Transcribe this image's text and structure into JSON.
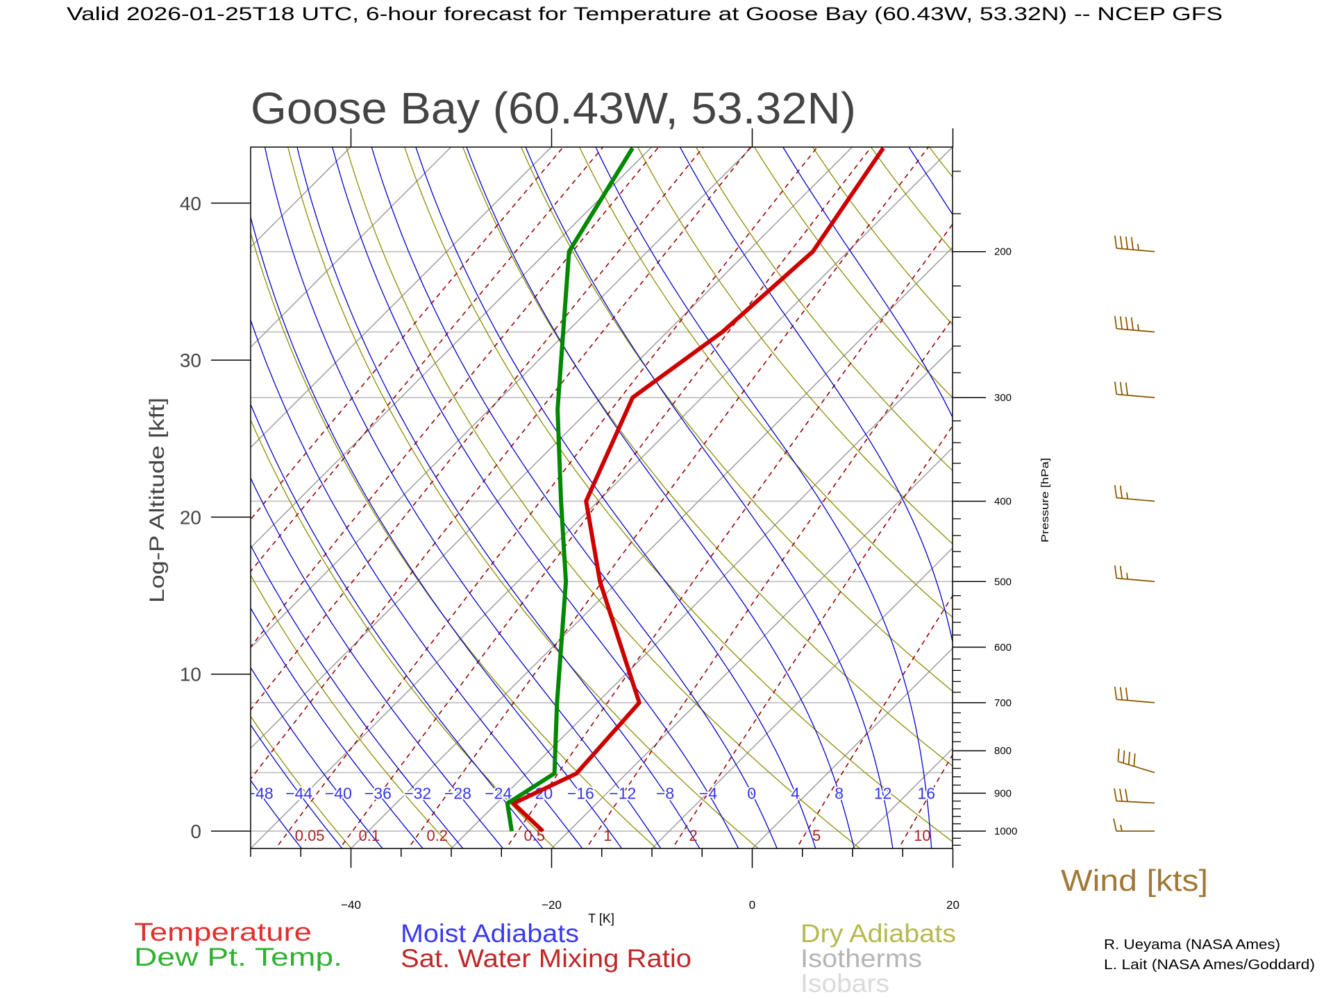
{
  "header": {
    "title": "Valid 2026-01-25T18 UTC, 6-hour forecast for Temperature at Goose Bay (60.43W, 53.32N) -- NCEP GFS"
  },
  "chart_data": {
    "type": "line",
    "kind": "skew-T log-P sounding",
    "title": "Goose Bay (60.43W, 53.32N)",
    "xlabel": "T [K]",
    "ylabel": "Log-P Altitude [kft]",
    "y2label": "Pressure [hPa]",
    "xlim": [
      -50,
      20
    ],
    "plim_hpa": [
      1050,
      150
    ],
    "xticks": [
      -40,
      -20,
      0,
      20
    ],
    "xtick_labels": [
      "−40",
      "−20",
      "0",
      "20"
    ],
    "altitude_ticks": [
      0,
      10,
      20,
      30,
      40
    ],
    "altitude_tick_labels": [
      "0",
      "10",
      "20",
      "30",
      "40"
    ],
    "pressure_ticks": [
      200,
      300,
      400,
      500,
      600,
      700,
      800,
      900,
      1000
    ],
    "pressure_tick_labels": [
      "200",
      "300",
      "400",
      "500",
      "600",
      "700",
      "800",
      "900",
      "1000"
    ],
    "isobars_hpa": [
      1000,
      850,
      700,
      500,
      400,
      300,
      250,
      200
    ],
    "isotherm_step_c": 10,
    "dry_adiabat_theta_k": [
      210,
      220,
      230,
      240,
      250,
      260,
      270,
      280,
      290,
      300,
      310,
      320,
      330,
      340,
      350,
      360,
      370,
      380,
      390,
      400,
      410,
      420,
      430,
      440,
      450,
      460
    ],
    "moist_adiabats_c": [
      -48,
      -44,
      -40,
      -36,
      -32,
      -28,
      -24,
      -20,
      -16,
      -12,
      -8,
      -4,
      0,
      4,
      8,
      12,
      16,
      20,
      24,
      28
    ],
    "moist_adiabat_labels": [
      "−48",
      "−44",
      "−40",
      "−36",
      "−32",
      "−28",
      "−24",
      "−20",
      "−16",
      "−12",
      "−8",
      "−4",
      "0",
      "4",
      "8",
      "12",
      "16"
    ],
    "mixing_ratio_gkg": [
      0.001,
      0.002,
      0.005,
      0.01,
      0.02,
      0.05,
      0.1,
      0.2,
      0.5,
      1,
      2,
      5,
      10,
      20
    ],
    "mixing_ratio_labels": [
      "0.05",
      "0.1",
      "0.2",
      "0.5",
      "1",
      "2",
      "5",
      "10"
    ],
    "series": [
      {
        "name": "Temperature",
        "color": "#cc0000",
        "pressure": [
          1000,
          926,
          852,
          700,
          500,
          400,
          300,
          250,
          200,
          150
        ],
        "values": [
          -22.6,
          -28.3,
          -25.0,
          -25.8,
          -41.8,
          -51.2,
          -56.9,
          -54.5,
          -53.5,
          -56.8
        ]
      },
      {
        "name": "Dew Pt. Temp.",
        "color": "#008800",
        "pressure": [
          1000,
          926,
          852,
          700,
          500,
          400,
          310,
          200,
          150
        ],
        "values": [
          -25.7,
          -28.9,
          -27.2,
          -34.0,
          -45.2,
          -53.7,
          -63.2,
          -77.8,
          -81.8
        ]
      }
    ],
    "winds": [
      {
        "pressure": 200,
        "speed_kt": 45,
        "direction_deg": 275
      },
      {
        "pressure": 250,
        "speed_kt": 45,
        "direction_deg": 275
      },
      {
        "pressure": 300,
        "speed_kt": 30,
        "direction_deg": 275
      },
      {
        "pressure": 400,
        "speed_kt": 25,
        "direction_deg": 275
      },
      {
        "pressure": 500,
        "speed_kt": 25,
        "direction_deg": 275
      },
      {
        "pressure": 700,
        "speed_kt": 30,
        "direction_deg": 275
      },
      {
        "pressure": 850,
        "speed_kt": 40,
        "direction_deg": 287
      },
      {
        "pressure": 925,
        "speed_kt": 30,
        "direction_deg": 273
      },
      {
        "pressure": 1000,
        "speed_kt": 15,
        "direction_deg": 270
      }
    ],
    "wind_label": "Wind [kts]",
    "legend": {
      "temperature": "Temperature",
      "dewpoint": "Dew Pt. Temp.",
      "moist": "Moist Adiabats",
      "mixing": "Sat. Water Mixing Ratio",
      "dry": "Dry Adiabats",
      "isotherms": "Isotherms",
      "isobars": "Isobars"
    },
    "colors": {
      "isotherm": "#9a9a9a",
      "isobar": "#c8c8c8",
      "dry": "#8c8c00",
      "moist": "#0000cc",
      "mixing": "#990000",
      "wind": "#8b5a00"
    }
  },
  "credits": {
    "line1": "R. Ueyama (NASA Ames)",
    "line2": "L. Lait (NASA Ames/Goddard)"
  }
}
